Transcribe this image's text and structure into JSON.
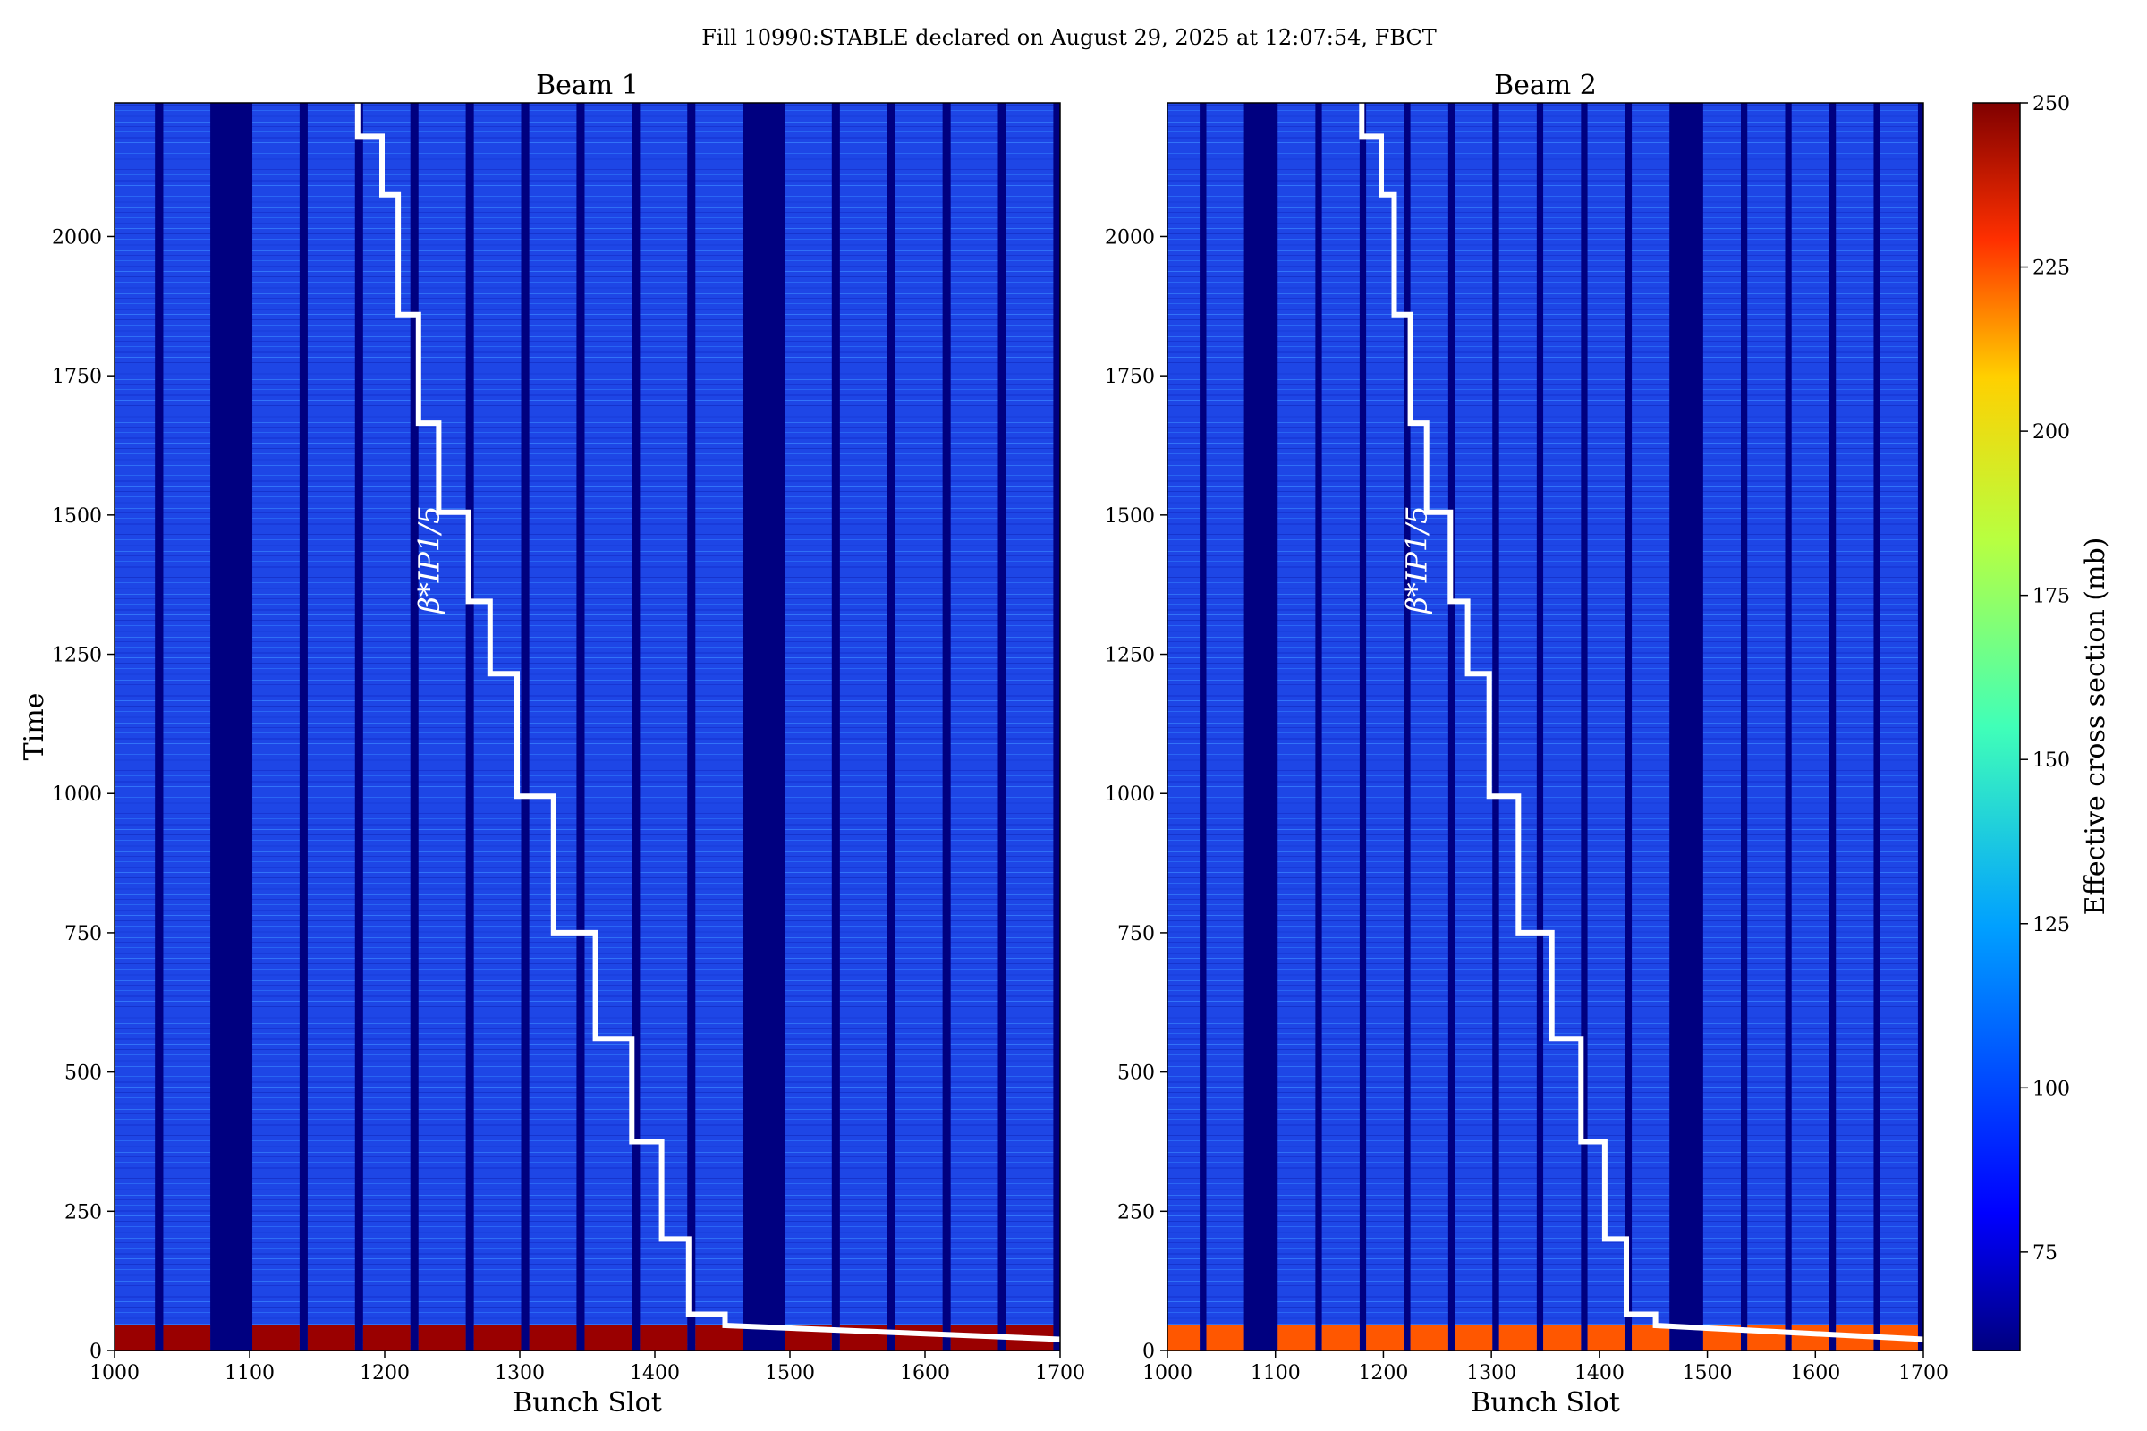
{
  "figure_title": "Fill 10990:STABLE declared on August 29, 2025 at 12:07:54, FBCT",
  "colorbar": {
    "label": "Effective cross section (mb)",
    "vmin": 60,
    "vmax": 250,
    "ticks": [
      "75",
      "100",
      "125",
      "150",
      "175",
      "200",
      "225",
      "250"
    ],
    "colormap": "jet"
  },
  "chart_data": [
    {
      "type": "heatmap",
      "title": "Beam 1",
      "xlabel": "Bunch Slot",
      "ylabel": "Time",
      "xlim": [
        1000,
        1700
      ],
      "ylim": [
        0,
        2240
      ],
      "xticks": [
        "1000",
        "1100",
        "1200",
        "1300",
        "1400",
        "1500",
        "1600",
        "1700"
      ],
      "yticks": [
        "0",
        "250",
        "500",
        "750",
        "1000",
        "1250",
        "1500",
        "1750",
        "2000"
      ],
      "background_value_mb": 85,
      "filled_trains": [
        [
          1000,
          1030
        ],
        [
          1036,
          1071
        ],
        [
          1102,
          1137
        ],
        [
          1143,
          1178
        ],
        [
          1184,
          1219
        ],
        [
          1225,
          1260
        ],
        [
          1266,
          1301
        ],
        [
          1307,
          1342
        ],
        [
          1348,
          1383
        ],
        [
          1389,
          1424
        ],
        [
          1430,
          1465
        ],
        [
          1496,
          1531
        ],
        [
          1537,
          1572
        ],
        [
          1578,
          1613
        ],
        [
          1619,
          1654
        ],
        [
          1660,
          1695
        ]
      ],
      "empty_gaps": [
        [
          1030,
          1036
        ],
        [
          1071,
          1102
        ],
        [
          1301,
          1307
        ],
        [
          1465,
          1496
        ],
        [
          1654,
          1660
        ],
        [
          1695,
          1700
        ]
      ],
      "initial_burst_max_time": 45,
      "initial_burst_value_mb": 245,
      "beta_star_annotation": "β*IP1/5",
      "beta_star_label": {
        "x": 1240,
        "y": 1420
      },
      "beta_star_step_line": [
        [
          1180,
          2240
        ],
        [
          1180,
          2180
        ],
        [
          1198,
          2180
        ],
        [
          1198,
          2075
        ],
        [
          1210,
          2075
        ],
        [
          1210,
          1860
        ],
        [
          1225,
          1860
        ],
        [
          1225,
          1665
        ],
        [
          1240,
          1665
        ],
        [
          1240,
          1505
        ],
        [
          1262,
          1505
        ],
        [
          1262,
          1345
        ],
        [
          1278,
          1345
        ],
        [
          1278,
          1215
        ],
        [
          1298,
          1215
        ],
        [
          1298,
          995
        ],
        [
          1325,
          995
        ],
        [
          1325,
          750
        ],
        [
          1356,
          750
        ],
        [
          1356,
          560
        ],
        [
          1383,
          560
        ],
        [
          1383,
          375
        ],
        [
          1405,
          375
        ],
        [
          1405,
          200
        ],
        [
          1425,
          200
        ],
        [
          1425,
          65
        ],
        [
          1452,
          65
        ],
        [
          1452,
          45
        ],
        [
          1700,
          20
        ]
      ]
    },
    {
      "type": "heatmap",
      "title": "Beam 2",
      "xlabel": "Bunch Slot",
      "ylabel": "",
      "xlim": [
        1000,
        1700
      ],
      "ylim": [
        0,
        2240
      ],
      "xticks": [
        "1000",
        "1100",
        "1200",
        "1300",
        "1400",
        "1500",
        "1600",
        "1700"
      ],
      "yticks": [
        "0",
        "250",
        "500",
        "750",
        "1000",
        "1250",
        "1500",
        "1750",
        "2000"
      ],
      "background_value_mb": 85,
      "filled_trains": [
        [
          1000,
          1030
        ],
        [
          1036,
          1071
        ],
        [
          1102,
          1137
        ],
        [
          1143,
          1178
        ],
        [
          1184,
          1219
        ],
        [
          1225,
          1260
        ],
        [
          1266,
          1301
        ],
        [
          1307,
          1342
        ],
        [
          1348,
          1383
        ],
        [
          1389,
          1424
        ],
        [
          1430,
          1465
        ],
        [
          1496,
          1531
        ],
        [
          1537,
          1572
        ],
        [
          1578,
          1613
        ],
        [
          1619,
          1654
        ],
        [
          1660,
          1695
        ]
      ],
      "empty_gaps": [
        [
          1030,
          1036
        ],
        [
          1071,
          1102
        ],
        [
          1301,
          1307
        ],
        [
          1465,
          1496
        ],
        [
          1654,
          1660
        ],
        [
          1695,
          1700
        ]
      ],
      "initial_burst_max_time": 45,
      "initial_burst_value_mb": 210,
      "beta_star_annotation": "β*IP1/5",
      "beta_star_label": {
        "x": 1240,
        "y": 1420
      },
      "beta_star_step_line": [
        [
          1180,
          2240
        ],
        [
          1180,
          2180
        ],
        [
          1198,
          2180
        ],
        [
          1198,
          2075
        ],
        [
          1210,
          2075
        ],
        [
          1210,
          1860
        ],
        [
          1225,
          1860
        ],
        [
          1225,
          1665
        ],
        [
          1240,
          1665
        ],
        [
          1240,
          1505
        ],
        [
          1262,
          1505
        ],
        [
          1262,
          1345
        ],
        [
          1278,
          1345
        ],
        [
          1278,
          1215
        ],
        [
          1298,
          1215
        ],
        [
          1298,
          995
        ],
        [
          1325,
          995
        ],
        [
          1325,
          750
        ],
        [
          1356,
          750
        ],
        [
          1356,
          560
        ],
        [
          1383,
          560
        ],
        [
          1383,
          375
        ],
        [
          1405,
          375
        ],
        [
          1405,
          200
        ],
        [
          1425,
          200
        ],
        [
          1425,
          65
        ],
        [
          1452,
          65
        ],
        [
          1452,
          45
        ],
        [
          1700,
          20
        ]
      ]
    }
  ]
}
